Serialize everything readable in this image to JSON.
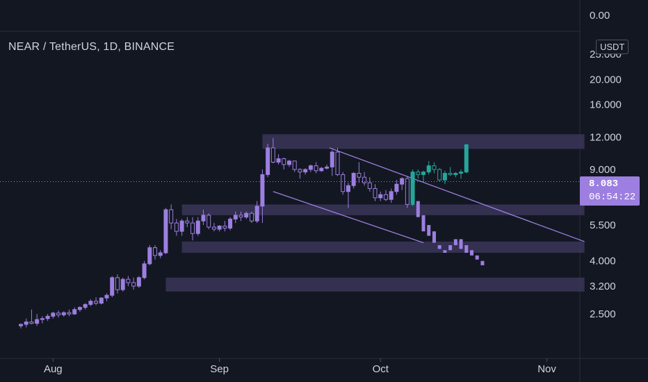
{
  "header": {
    "title": "NEAR / TetherUS, 1D, BINANCE",
    "currency": "USDT"
  },
  "last_price": {
    "value": "8.083",
    "countdown": "06:54:22"
  },
  "colors": {
    "background": "#131722",
    "candle_main": "#9c7fe0",
    "candle_projection": "#26a69a",
    "zone_fill": "#3a3558",
    "channel_line": "#9c7fe0",
    "axis_text": "#d1d4dc",
    "grid": "#2a2e39"
  },
  "chart_data": {
    "type": "candlestick",
    "scale": "log",
    "ylim": [
      2.2,
      30
    ],
    "x_ticks": [
      {
        "label": "Aug",
        "day": 6
      },
      {
        "label": "Sep",
        "day": 37
      },
      {
        "label": "Oct",
        "day": 67
      },
      {
        "label": "Nov",
        "day": 98
      }
    ],
    "y_ticks": [
      {
        "label": "0.00",
        "value": null
      },
      {
        "label": "25.000",
        "value": 25
      },
      {
        "label": "20.000",
        "value": 20
      },
      {
        "label": "16.000",
        "value": 16
      },
      {
        "label": "12.000",
        "value": 12
      },
      {
        "label": "9.000",
        "value": 9
      },
      {
        "label": "5.500",
        "value": 5.5
      },
      {
        "label": "4.000",
        "value": 4
      },
      {
        "label": "3.200",
        "value": 3.2
      },
      {
        "label": "2.500",
        "value": 2.5
      }
    ],
    "candles_ohlc": [
      [
        2.25,
        2.3,
        2.2,
        2.28
      ],
      [
        2.28,
        2.4,
        2.22,
        2.33
      ],
      [
        2.33,
        2.6,
        2.28,
        2.3
      ],
      [
        2.3,
        2.5,
        2.25,
        2.38
      ],
      [
        2.38,
        2.45,
        2.3,
        2.4
      ],
      [
        2.4,
        2.5,
        2.35,
        2.45
      ],
      [
        2.45,
        2.55,
        2.4,
        2.52
      ],
      [
        2.52,
        2.58,
        2.42,
        2.48
      ],
      [
        2.48,
        2.56,
        2.44,
        2.53
      ],
      [
        2.53,
        2.6,
        2.45,
        2.5
      ],
      [
        2.5,
        2.65,
        2.48,
        2.6
      ],
      [
        2.6,
        2.68,
        2.55,
        2.65
      ],
      [
        2.65,
        2.75,
        2.6,
        2.72
      ],
      [
        2.72,
        2.85,
        2.68,
        2.8
      ],
      [
        2.8,
        2.9,
        2.7,
        2.75
      ],
      [
        2.75,
        2.9,
        2.72,
        2.88
      ],
      [
        2.88,
        3.0,
        2.8,
        2.95
      ],
      [
        2.95,
        3.5,
        2.9,
        3.45
      ],
      [
        3.45,
        3.55,
        3.0,
        3.1
      ],
      [
        3.1,
        3.45,
        3.05,
        3.4
      ],
      [
        3.4,
        3.5,
        3.2,
        3.3
      ],
      [
        3.3,
        3.45,
        3.1,
        3.2
      ],
      [
        3.2,
        3.5,
        3.15,
        3.45
      ],
      [
        3.45,
        4.0,
        3.4,
        3.9
      ],
      [
        3.9,
        4.6,
        3.85,
        4.5
      ],
      [
        4.5,
        4.6,
        4.05,
        4.2
      ],
      [
        4.2,
        4.4,
        4.1,
        4.3
      ],
      [
        4.3,
        6.4,
        4.25,
        6.3
      ],
      [
        6.3,
        6.6,
        5.3,
        5.6
      ],
      [
        5.6,
        5.8,
        5.0,
        5.2
      ],
      [
        5.2,
        5.8,
        5.0,
        5.7
      ],
      [
        5.7,
        5.9,
        5.4,
        5.6
      ],
      [
        5.6,
        5.9,
        4.8,
        5.1
      ],
      [
        5.1,
        5.9,
        5.0,
        5.7
      ],
      [
        5.7,
        6.3,
        5.5,
        6.0
      ],
      [
        6.0,
        6.1,
        5.3,
        5.4
      ],
      [
        5.4,
        5.6,
        5.2,
        5.3
      ],
      [
        5.3,
        5.5,
        5.2,
        5.45
      ],
      [
        5.45,
        5.7,
        5.2,
        5.35
      ],
      [
        5.35,
        5.9,
        5.25,
        5.8
      ],
      [
        5.8,
        6.2,
        5.6,
        6.0
      ],
      [
        6.0,
        6.2,
        5.7,
        5.9
      ],
      [
        5.9,
        6.2,
        5.8,
        6.1
      ],
      [
        6.1,
        6.2,
        5.6,
        5.7
      ],
      [
        5.7,
        6.8,
        5.6,
        6.5
      ],
      [
        6.5,
        9.0,
        5.6,
        8.6
      ],
      [
        8.6,
        11.3,
        8.4,
        10.9
      ],
      [
        10.9,
        11.9,
        9.5,
        9.6
      ],
      [
        9.6,
        10.3,
        9.4,
        9.9
      ],
      [
        9.9,
        10.0,
        9.0,
        9.4
      ],
      [
        9.4,
        9.8,
        9.2,
        9.7
      ],
      [
        9.7,
        9.7,
        8.8,
        9.0
      ],
      [
        9.0,
        9.1,
        8.3,
        8.8
      ],
      [
        8.8,
        9.1,
        8.6,
        9.0
      ],
      [
        9.0,
        9.4,
        8.8,
        9.3
      ],
      [
        9.3,
        9.6,
        8.7,
        8.9
      ],
      [
        8.9,
        9.2,
        8.8,
        9.1
      ],
      [
        9.1,
        9.4,
        9.0,
        9.2
      ],
      [
        9.2,
        10.7,
        8.5,
        10.5
      ],
      [
        10.5,
        10.9,
        8.5,
        8.6
      ],
      [
        8.6,
        8.8,
        7.2,
        7.4
      ],
      [
        7.4,
        8.0,
        6.4,
        7.8
      ],
      [
        7.8,
        8.8,
        7.6,
        8.7
      ],
      [
        8.7,
        9.6,
        8.0,
        8.4
      ],
      [
        8.4,
        8.8,
        7.8,
        8.0
      ],
      [
        8.0,
        8.4,
        7.4,
        7.6
      ],
      [
        7.6,
        7.9,
        6.8,
        7.0
      ],
      [
        7.0,
        7.4,
        6.8,
        7.2
      ],
      [
        7.2,
        7.5,
        6.8,
        6.9
      ],
      [
        6.9,
        7.6,
        6.7,
        7.4
      ],
      [
        7.4,
        8.2,
        7.2,
        7.9
      ],
      [
        7.9,
        8.4,
        7.5,
        8.3
      ],
      [
        8.3,
        8.5,
        6.4,
        6.6
      ]
    ],
    "projection_ohlc": [
      [
        6.6,
        9.0,
        6.5,
        8.8
      ],
      [
        8.8,
        9.0,
        8.3,
        8.6
      ],
      [
        8.6,
        8.9,
        8.0,
        8.8
      ],
      [
        8.8,
        9.7,
        8.6,
        9.3
      ],
      [
        9.3,
        9.6,
        8.7,
        9.0
      ],
      [
        9.0,
        9.1,
        8.1,
        8.2
      ],
      [
        8.2,
        8.9,
        7.9,
        8.7
      ],
      [
        8.7,
        9.2,
        8.5,
        8.6
      ],
      [
        8.6,
        8.8,
        8.4,
        8.7
      ],
      [
        8.7,
        9.0,
        8.3,
        8.8
      ],
      [
        8.8,
        11.3,
        8.7,
        11.2
      ]
    ],
    "projection_start_day": 73,
    "decline_path": [
      [
        74,
        6.8,
        5.9
      ],
      [
        75,
        6.0,
        5.2
      ],
      [
        76,
        5.5,
        5.0
      ],
      [
        77,
        5.2,
        4.7
      ],
      [
        78,
        4.6,
        4.45
      ],
      [
        79,
        4.4,
        4.3
      ],
      [
        80,
        4.6,
        4.4
      ],
      [
        81,
        4.85,
        4.6
      ],
      [
        82,
        4.85,
        4.45
      ],
      [
        83,
        4.6,
        4.3
      ],
      [
        84,
        4.4,
        4.2
      ],
      [
        85,
        4.2,
        4.05
      ],
      [
        86,
        4.0,
        3.85
      ]
    ],
    "zones": [
      {
        "x0": 45,
        "x1": 105,
        "y_low": 10.8,
        "y_high": 12.3
      },
      {
        "x0": 30,
        "x1": 105,
        "y_low": 6.0,
        "y_high": 6.6
      },
      {
        "x0": 30,
        "x1": 105,
        "y_low": 4.3,
        "y_high": 4.75
      },
      {
        "x0": 27,
        "x1": 105,
        "y_low": 3.05,
        "y_high": 3.45
      }
    ],
    "channel_lines": [
      {
        "x0": 57.5,
        "y0": 10.9,
        "x1": 105,
        "y1": 4.75
      },
      {
        "x0": 47,
        "y0": 7.4,
        "x1": 75,
        "y1": 4.7
      }
    ],
    "last_price_value": 8.083
  }
}
